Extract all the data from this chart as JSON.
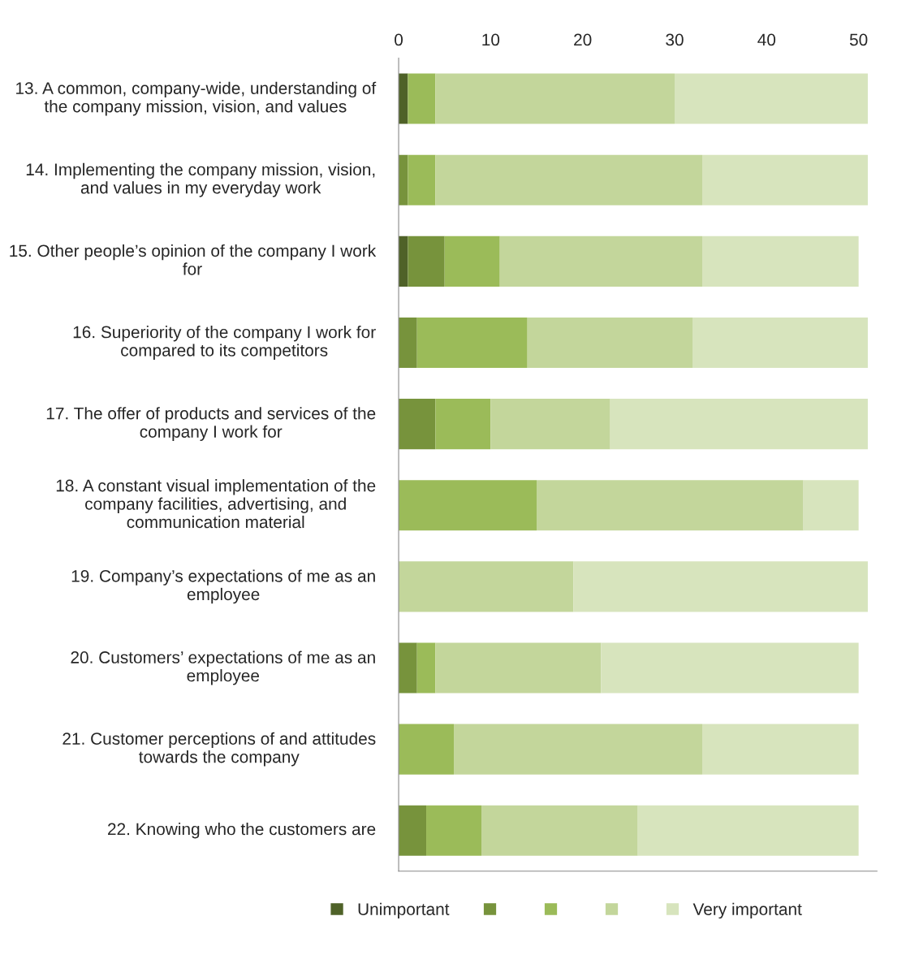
{
  "chart_data": {
    "type": "bar",
    "orientation": "horizontal",
    "stacked": true,
    "categories": [
      "13. A common, company-wide, understanding of the company mission, vision, and values",
      "14. Implementing the company mission, vision, and values in my everyday work",
      "15. Other people’s opinion of the company I work for",
      "16. Superiority of the company I work for compared to its competitors",
      "17. The offer of products and services of the company I work for",
      "18. A constant visual implementation of the company facilities, advertising, and communication material",
      "19. Company’s expectations of me as an employee",
      "20. Customers’ expectations of me as an employee",
      "21. Customer perceptions of and attitudes towards the company",
      "22. Knowing who the customers are"
    ],
    "series": [
      {
        "name": "Unimportant",
        "color": "#4f6228",
        "values": [
          1,
          0,
          1,
          0,
          0,
          0,
          0,
          0,
          0,
          0
        ]
      },
      {
        "color": "#77933c",
        "values": [
          0,
          1,
          4,
          2,
          4,
          0,
          0,
          2,
          0,
          3
        ]
      },
      {
        "color": "#9bbb59",
        "values": [
          3,
          3,
          6,
          12,
          6,
          15,
          0,
          2,
          6,
          6
        ]
      },
      {
        "color": "#c3d69b",
        "values": [
          26,
          29,
          22,
          18,
          13,
          29,
          19,
          18,
          27,
          17
        ]
      },
      {
        "name": "Very important",
        "color": "#d7e4bd",
        "values": [
          21,
          18,
          17,
          19,
          28,
          6,
          32,
          28,
          17,
          24
        ]
      }
    ],
    "xlim": [
      0,
      52
    ],
    "xticks": [
      0,
      10,
      20,
      30,
      40,
      50
    ],
    "grid": false,
    "legend": "bottom"
  }
}
